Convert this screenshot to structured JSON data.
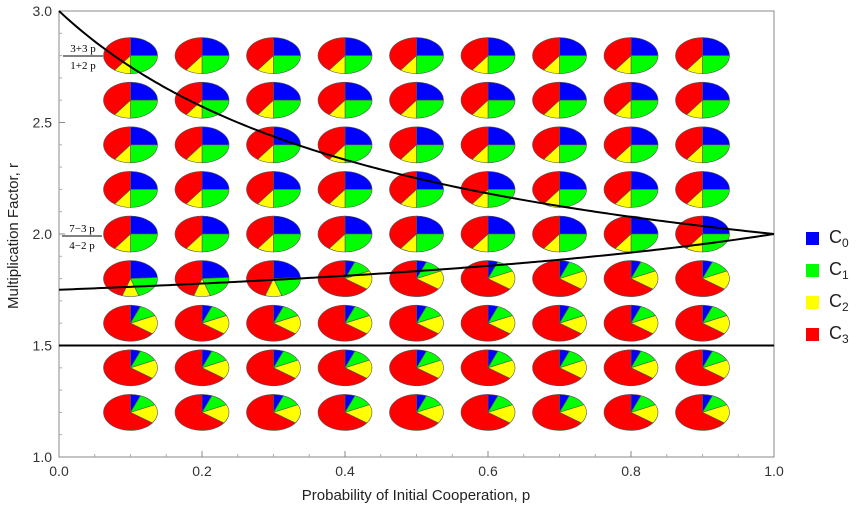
{
  "chart_data": {
    "type": "scatter",
    "marker": "pie",
    "xlabel": "Probability of Initial Cooperation, p",
    "ylabel": "Multiplication Factor, r",
    "xlim": [
      0.0,
      1.0
    ],
    "ylim": [
      1.0,
      3.0
    ],
    "x_ticks": [
      "0.0",
      "0.2",
      "0.4",
      "0.6",
      "0.8",
      "1.0"
    ],
    "y_ticks": [
      "1.0",
      "1.5",
      "2.0",
      "2.5",
      "3.0"
    ],
    "x": [
      0.1,
      0.2,
      0.3,
      0.4,
      0.5,
      0.6,
      0.7,
      0.8,
      0.9
    ],
    "y": [
      2.8,
      2.6,
      2.4,
      2.2,
      2.0,
      1.8,
      1.6,
      1.4,
      1.2
    ],
    "legend": [
      {
        "name": "C",
        "sub": "0",
        "color": "#0000ff"
      },
      {
        "name": "C",
        "sub": "1",
        "color": "#00ff00"
      },
      {
        "name": "C",
        "sub": "2",
        "color": "#ffff00"
      },
      {
        "name": "C",
        "sub": "3",
        "color": "#ff0000"
      }
    ],
    "pie_fractions_by_row": [
      {
        "r_min": 1.95,
        "fractions": [
          0.25,
          0.25,
          0.1,
          0.4
        ]
      },
      {
        "r_min": 1.75,
        "fractions": [
          0.24,
          0.21,
          0.1,
          0.45
        ]
      },
      {
        "r_min": 1.55,
        "fractions": [
          0.06,
          0.12,
          0.17,
          0.65
        ]
      },
      {
        "r_min": 0.0,
        "fractions": [
          0.05,
          0.1,
          0.2,
          0.65
        ]
      }
    ],
    "pie_fractions_below_lower_curve": [
      0.06,
      0.12,
      0.17,
      0.65
    ],
    "curves": [
      {
        "label_num": "3+3 p",
        "label_den": "1+2 p",
        "formula": "(3+3p)/(1+2p)"
      },
      {
        "label_num": "7−3 p",
        "label_den": "4−2 p",
        "formula": "(7-3p)/(4-2p)"
      },
      {
        "formula": "1.5"
      }
    ],
    "grid": false,
    "legend_position": "right"
  }
}
